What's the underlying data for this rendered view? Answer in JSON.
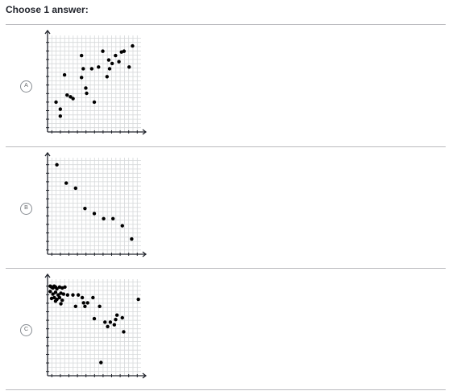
{
  "prompt": "Choose 1 answer:",
  "choices": [
    {
      "letter": "A",
      "chart_data": {
        "type": "scatter",
        "x": [
          1,
          1.5,
          1.5,
          2,
          2.3,
          2.7,
          3,
          4,
          4,
          4.2,
          4.5,
          4.6,
          5.2,
          5.5,
          6,
          6.5,
          7,
          7.2,
          7.3,
          7.6,
          8,
          8.4,
          8.7,
          9,
          9.6,
          10
        ],
        "y": [
          2.4,
          1.6,
          0.8,
          5.5,
          3.2,
          3,
          2.8,
          7.7,
          5.2,
          6.2,
          4,
          3.4,
          6.2,
          2.4,
          6.4,
          8.2,
          5.3,
          7.2,
          6.2,
          6.8,
          7.7,
          7,
          8.1,
          8.2,
          6.4,
          8.8
        ],
        "title": "",
        "xlabel": "",
        "ylabel": "",
        "xlim": [
          0,
          11
        ],
        "ylim": [
          -1,
          10
        ],
        "grid": true
      }
    },
    {
      "letter": "B",
      "chart_data": {
        "type": "scatter",
        "x": [
          1,
          2,
          3,
          4,
          5,
          6,
          7,
          8,
          9
        ],
        "y": [
          8.8,
          7,
          6.5,
          4.5,
          4,
          3.5,
          3.5,
          2.8,
          1.5
        ],
        "title": "",
        "xlabel": "",
        "ylabel": "",
        "xlim": [
          0,
          10
        ],
        "ylim": [
          0,
          9.5
        ],
        "grid": true
      }
    },
    {
      "letter": "C",
      "chart_data": {
        "type": "scatter",
        "x": [
          0.2,
          0.3,
          0.4,
          0.5,
          0.6,
          0.7,
          0.9,
          1.1,
          1.3,
          0.2,
          0.4,
          0.6,
          0.8,
          1.0,
          1.2,
          0.3,
          0.5,
          0.7,
          0.9,
          1.1,
          0.6,
          1.0,
          1.5,
          1.9,
          2.3,
          2.6,
          2.7,
          3.0,
          3.4,
          2.1,
          2.8,
          3.5,
          3.9,
          4.3,
          4.7,
          5.1,
          5.2,
          5.6,
          5.0,
          4.5,
          5.7,
          4.0,
          6.8
        ],
        "y": [
          10.2,
          10.1,
          10.0,
          10.2,
          10.1,
          9.9,
          10.1,
          10.0,
          10.1,
          9.6,
          9.3,
          9.5,
          9.2,
          9.4,
          9.3,
          8.8,
          8.9,
          8.7,
          8.9,
          8.6,
          8.5,
          8.2,
          9.2,
          9.2,
          9.2,
          8.9,
          8.3,
          8.3,
          8.9,
          7.9,
          7.9,
          6.5,
          7.9,
          6.1,
          6.1,
          6.4,
          6.9,
          6.6,
          5.8,
          5.6,
          5.0,
          1.5,
          8.7
        ],
        "title": "",
        "xlabel": "",
        "ylabel": "",
        "xlim": [
          0,
          7
        ],
        "ylim": [
          0,
          11
        ],
        "grid": true
      }
    }
  ],
  "colors": {
    "text": "#21242c",
    "divider": "#bababe",
    "grid": "#d6d8da",
    "axis": "#21242c",
    "point": "#000000",
    "radio": "#888d93"
  }
}
